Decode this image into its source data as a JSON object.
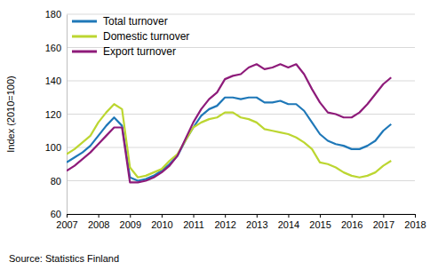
{
  "chart_data": {
    "type": "line",
    "y_label": "Index (2010=100)",
    "source": "Source: Statistics Finland",
    "x": [
      2007.0,
      2007.25,
      2007.5,
      2007.75,
      2008.0,
      2008.25,
      2008.5,
      2008.75,
      2009.0,
      2009.25,
      2009.5,
      2009.75,
      2010.0,
      2010.25,
      2010.5,
      2010.75,
      2011.0,
      2011.25,
      2011.5,
      2011.75,
      2012.0,
      2012.25,
      2012.5,
      2012.75,
      2013.0,
      2013.25,
      2013.5,
      2013.75,
      2014.0,
      2014.25,
      2014.5,
      2014.75,
      2015.0,
      2015.25,
      2015.5,
      2015.75,
      2016.0,
      2016.25,
      2016.5,
      2016.75,
      2017.0,
      2017.25
    ],
    "series": [
      {
        "name": "Total turnover",
        "color": "#1f78b8",
        "values": [
          91,
          94,
          97,
          101,
          107,
          113,
          118,
          113,
          82,
          80,
          81,
          83,
          86,
          90,
          95,
          104,
          112,
          119,
          123,
          125,
          130,
          130,
          129,
          130,
          130,
          127,
          127,
          128,
          126,
          126,
          122,
          115,
          108,
          104,
          102,
          101,
          99,
          99,
          101,
          104,
          110,
          114
        ]
      },
      {
        "name": "Domestic turnover",
        "color": "#bcd631",
        "values": [
          96,
          99,
          103,
          107,
          115,
          121,
          126,
          123,
          88,
          82,
          83,
          85,
          87,
          92,
          96,
          104,
          112,
          115,
          117,
          118,
          121,
          121,
          118,
          117,
          115,
          111,
          110,
          109,
          108,
          106,
          103,
          99,
          91,
          90,
          88,
          85,
          83,
          82,
          83,
          85,
          89,
          92
        ]
      },
      {
        "name": "Export turnover",
        "color": "#8e1b7a",
        "values": [
          86,
          89,
          93,
          97,
          102,
          107,
          112,
          112,
          79,
          79,
          80,
          82,
          85,
          89,
          95,
          105,
          115,
          123,
          129,
          133,
          141,
          143,
          144,
          148,
          150,
          147,
          148,
          150,
          148,
          150,
          144,
          135,
          127,
          121,
          120,
          118,
          118,
          121,
          126,
          132,
          138,
          142
        ]
      }
    ],
    "xlim": [
      2007,
      2018
    ],
    "xticks": [
      2007,
      2008,
      2009,
      2010,
      2011,
      2012,
      2013,
      2014,
      2015,
      2016,
      2017,
      2018
    ],
    "ylim": [
      60,
      180
    ],
    "yticks": [
      60,
      80,
      100,
      120,
      140,
      160,
      180
    ],
    "grid": true,
    "legend": "top-left"
  }
}
